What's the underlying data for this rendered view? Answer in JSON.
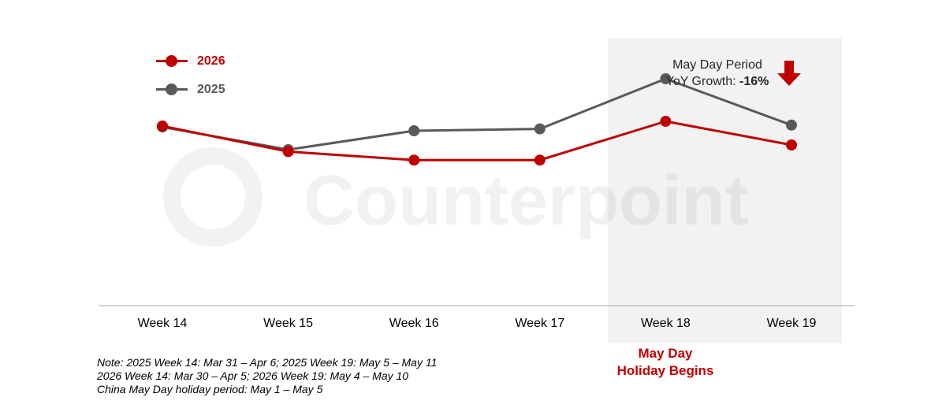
{
  "chart_data": {
    "type": "line",
    "categories": [
      "Week 14",
      "Week 15",
      "Week 16",
      "Week 17",
      "Week 18",
      "Week 19"
    ],
    "series": [
      {
        "name": "2026",
        "color": "#c00000",
        "values": [
          100,
          73,
          64,
          64,
          105,
          80
        ]
      },
      {
        "name": "2025",
        "color": "#595959",
        "values": [
          99,
          75,
          95,
          97,
          150,
          101
        ]
      }
    ],
    "ylim": [
      -90,
      200
    ],
    "y_axis_visible": false,
    "grid": false,
    "legend_position": "top-left",
    "highlight": {
      "categories": [
        "Week 18",
        "Week 19"
      ],
      "color": "#f2f2f2"
    },
    "watermark": "Counterpoint"
  },
  "callout": {
    "line1": "May Day Period",
    "line2_prefix": "YoY Growth: ",
    "line2_value": "-16%",
    "icon": "down-arrow-icon",
    "icon_color": "#c00000"
  },
  "holiday_label": {
    "line1": "May Day",
    "line2": "Holiday Begins"
  },
  "notes": [
    "Note: 2025 Week 14: Mar 31 – Apr 6; 2025 Week 19: May 5 – May 11",
    "2026 Week 14: Mar 30 – Apr 5; 2026 Week 19: May 4 – May 10",
    "China May Day holiday period: May 1 – May 5"
  ]
}
